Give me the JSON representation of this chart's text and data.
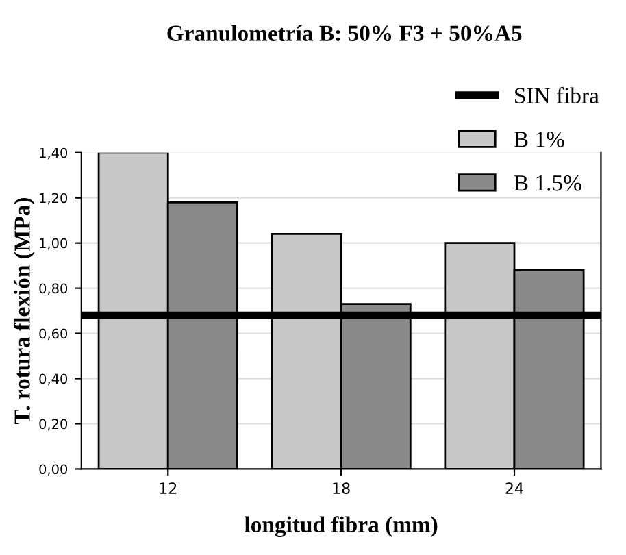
{
  "chart_data": {
    "type": "bar",
    "title": "Granulometría B: 50% F3 + 50%A5",
    "xlabel": "longitud fibra (mm)",
    "ylabel": "T. rotura flexión (MPa)",
    "categories": [
      "12",
      "18",
      "24"
    ],
    "series": [
      {
        "name": "B 1%",
        "color": "#c8c8c8",
        "values": [
          1.4,
          1.04,
          1.0
        ]
      },
      {
        "name": "B 1.5%",
        "color": "#8a8a8a",
        "values": [
          1.18,
          0.73,
          0.88
        ]
      }
    ],
    "ref_lines": [
      {
        "axis": "y",
        "value": 0.68,
        "label": "SIN fibra",
        "color": "#000000"
      }
    ],
    "ylim": [
      0,
      1.4
    ],
    "yticks": [
      {
        "value": 0,
        "label": "0,00"
      },
      {
        "value": 0.2,
        "label": "0,20"
      },
      {
        "value": 0.4,
        "label": "0,40"
      },
      {
        "value": 0.6,
        "label": "0,60"
      },
      {
        "value": 0.8,
        "label": "0,80"
      },
      {
        "value": 1.0,
        "label": "1,00"
      },
      {
        "value": 1.2,
        "label": "1,20"
      },
      {
        "value": 1.4,
        "label": "1,40"
      }
    ],
    "grid": "y",
    "legend": "top right"
  }
}
